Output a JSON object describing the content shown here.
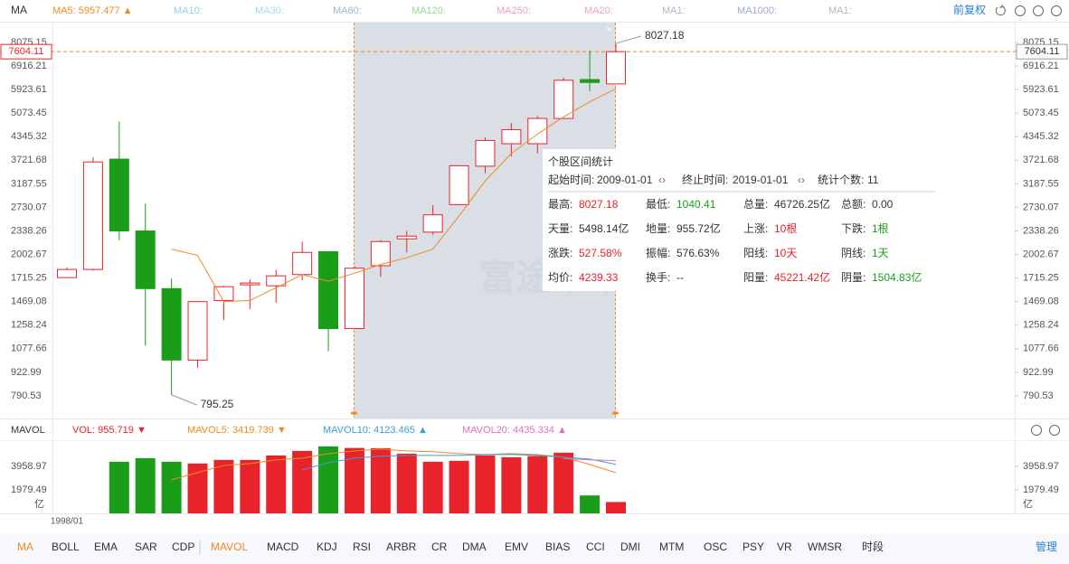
{
  "toolbar": {
    "indicator": "MA",
    "ma_others": [
      {
        "label": "MA10:",
        "color": "#8fd0f0"
      },
      {
        "label": "MA30:",
        "color": "#a8d8f0"
      },
      {
        "label": "MA60:",
        "color": "#9fb3d6"
      },
      {
        "label": "MA120:",
        "color": "#8fdc8f"
      },
      {
        "label": "MA250:",
        "color": "#f0a0c0"
      },
      {
        "label": "MA20:",
        "color": "#f0a0c0"
      },
      {
        "label": "MA1:",
        "color": "#b0b8c8"
      },
      {
        "label": "MA1000:",
        "color": "#a0a8d8"
      },
      {
        "label": "MA1:",
        "color": "#b0b8c8"
      }
    ],
    "adjust": "前复权"
  },
  "chart_data": [
    {
      "type": "candlestick",
      "yscale": "log",
      "ylim": [
        685,
        9206
      ],
      "yticks": [
        790.53,
        922.99,
        1077.66,
        1258.24,
        1469.08,
        1715.25,
        2002.67,
        2338.26,
        2730.07,
        3187.55,
        3721.68,
        4345.32,
        5073.45,
        5923.61,
        6916.21,
        8075.15
      ],
      "up_color": "#e8232b",
      "down_color": "#1a9e1a",
      "open": [
        1720,
        1815,
        3750,
        2338,
        1600,
        1000,
        1480,
        1640,
        1630,
        1755,
        2040,
        1230,
        1860,
        2220,
        2320,
        2780,
        3580,
        4150,
        4150,
        4900,
        6330,
        6150
      ],
      "high": [
        1840,
        3800,
        4800,
        2800,
        1710,
        1469,
        1630,
        1700,
        1810,
        2180,
        2040,
        1850,
        2200,
        2340,
        2770,
        3600,
        4330,
        4750,
        4980,
        6400,
        7650,
        8027.18
      ],
      "low": [
        1715,
        1800,
        2200,
        1100,
        795.25,
        950,
        1300,
        1400,
        1460,
        1690,
        1060,
        1230,
        1730,
        2030,
        2280,
        2770,
        3420,
        3820,
        3900,
        4880,
        5860,
        6150
      ],
      "close": [
        1815,
        3680,
        2338,
        1600,
        1000,
        1469,
        1620,
        1660,
        1740,
        2030,
        1230,
        1830,
        2180,
        2260,
        2600,
        3590,
        4240,
        4550,
        4900,
        6300,
        6210,
        7604.11
      ],
      "series": [
        {
          "name": "MA5: 5957.477 ▲",
          "color": "#f08a24",
          "values": [
            null,
            null,
            null,
            null,
            2075,
            1990,
            1469,
            1480,
            1610,
            1755,
            1680,
            1770,
            1875,
            1960,
            2075,
            2580,
            3250,
            3890,
            4420,
            4950,
            5470,
            5957.477
          ]
        }
      ],
      "last_price": 7604.11,
      "max_label": 8027.18,
      "min_label": 795.25,
      "watermark": "富途牛牛"
    },
    {
      "type": "bar",
      "title": "MAVOL",
      "unit": "亿",
      "ylim": [
        0,
        6000
      ],
      "yticks": [
        1979.49,
        3958.97
      ],
      "categories": [
        "1998/01",
        null,
        null,
        null,
        null,
        null,
        null,
        null,
        null,
        null,
        null,
        null,
        null,
        null,
        null,
        null,
        null,
        null,
        null,
        null,
        null,
        null
      ],
      "name": "VOL: 955.719 ▼",
      "color": "#e8232b",
      "values": [
        null,
        null,
        4340,
        4640,
        4340,
        4190,
        4490,
        4490,
        4870,
        5250,
        5630,
        5498.14,
        5480,
        5020,
        4340,
        4420,
        4870,
        4720,
        4817,
        5100,
        1504.83,
        955.719
      ],
      "series": [
        {
          "name": "MAVOL5: 3419.739 ▼",
          "color": "#f08a24",
          "values": [
            null,
            null,
            null,
            null,
            2820,
            3430,
            4030,
            4190,
            4490,
            4640,
            5020,
            5250,
            5400,
            5250,
            5180,
            5020,
            4950,
            5020,
            4950,
            4720,
            4110,
            3419.739
          ]
        },
        {
          "name": "MAVOL10: 4123.465 ▲",
          "color": "#3a9fd8",
          "values": [
            null,
            null,
            null,
            null,
            null,
            null,
            null,
            null,
            null,
            3650,
            4260,
            4640,
            4800,
            4870,
            4870,
            4870,
            4950,
            4950,
            4870,
            4720,
            4570,
            4123.465
          ]
        },
        {
          "name": "MAVOL20: 4435.334 ▲",
          "color": "#e070c0",
          "values": [
            null,
            null,
            null,
            null,
            null,
            null,
            null,
            null,
            null,
            null,
            null,
            null,
            null,
            null,
            null,
            null,
            null,
            null,
            null,
            4600,
            4500,
            4435.334
          ]
        }
      ]
    }
  ],
  "stats_panel": {
    "title": "个股区间统计",
    "start_label": "起始时间:",
    "start": "2009-01-01",
    "end_label": "终止时间:",
    "end": "2019-01-01",
    "count_label": "统计个数:",
    "count": "11",
    "rows": [
      [
        {
          "label": "最高:",
          "value": "8027.18",
          "tone": "up"
        },
        {
          "label": "最低:",
          "value": "1040.41",
          "tone": "down"
        },
        {
          "label": "总量:",
          "value": "46726.25亿",
          "tone": "flat"
        },
        {
          "label": "总额:",
          "value": "0.00",
          "tone": "flat"
        }
      ],
      [
        {
          "label": "天量:",
          "value": "5498.14亿",
          "tone": "flat"
        },
        {
          "label": "地量:",
          "value": "955.72亿",
          "tone": "flat"
        },
        {
          "label": "上涨:",
          "value": "10根",
          "tone": "up"
        },
        {
          "label": "下跌:",
          "value": "1根",
          "tone": "down"
        }
      ],
      [
        {
          "label": "涨跌:",
          "value": "527.58%",
          "tone": "up"
        },
        {
          "label": "振幅:",
          "value": "576.63%",
          "tone": "flat"
        },
        {
          "label": "阳线:",
          "value": "10天",
          "tone": "up"
        },
        {
          "label": "阴线:",
          "value": "1天",
          "tone": "down"
        }
      ],
      [
        {
          "label": "均价:",
          "value": "4239.33",
          "tone": "up"
        },
        {
          "label": "换手:",
          "value": "--",
          "tone": "flat"
        },
        {
          "label": "阳量:",
          "value": "45221.42亿",
          "tone": "up"
        },
        {
          "label": "阴量:",
          "value": "1504.83亿",
          "tone": "down"
        }
      ]
    ]
  },
  "tabs": [
    {
      "label": "MA",
      "active": true
    },
    {
      "label": "BOLL",
      "active": false
    },
    {
      "label": "EMA",
      "active": false
    },
    {
      "label": "SAR",
      "active": false
    },
    {
      "label": "CDP",
      "active": false
    },
    {
      "label": "MAVOL",
      "active": true
    },
    {
      "label": "MACD",
      "active": false
    },
    {
      "label": "KDJ",
      "active": false
    },
    {
      "label": "RSI",
      "active": false
    },
    {
      "label": "ARBR",
      "active": false
    },
    {
      "label": "CR",
      "active": false
    },
    {
      "label": "DMA",
      "active": false
    },
    {
      "label": "EMV",
      "active": false
    },
    {
      "label": "BIAS",
      "active": false
    },
    {
      "label": "CCI",
      "active": false
    },
    {
      "label": "DMI",
      "active": false
    },
    {
      "label": "MTM",
      "active": false
    },
    {
      "label": "OSC",
      "active": false
    },
    {
      "label": "PSY",
      "active": false
    },
    {
      "label": "VR",
      "active": false
    },
    {
      "label": "WMSR",
      "active": false
    },
    {
      "label": "时段",
      "active": false
    }
  ],
  "manage": "管理"
}
